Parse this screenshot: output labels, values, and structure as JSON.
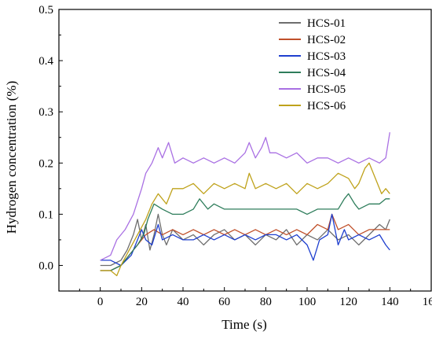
{
  "chart_data": {
    "type": "line",
    "title": "",
    "xlabel": "Time (s)",
    "ylabel": "Hydrogen concentration (%)",
    "xlim": [
      -20,
      160
    ],
    "ylim": [
      -0.05,
      0.5
    ],
    "xticks": [
      0,
      20,
      40,
      60,
      80,
      100,
      120,
      140,
      160
    ],
    "yticks": [
      0.0,
      0.1,
      0.2,
      0.3,
      0.4,
      0.5
    ],
    "xtick_labels": [
      "0",
      "20",
      "40",
      "60",
      "80",
      "100",
      "120",
      "140",
      "160"
    ],
    "ytick_labels": [
      "0.0",
      "0.1",
      "0.2",
      "0.3",
      "0.4",
      "0.5"
    ],
    "grid": false,
    "legend_position": "top-right",
    "series": [
      {
        "name": "HCS-01",
        "color": "#6e6e6e",
        "points": [
          [
            0,
            0.0
          ],
          [
            5,
            0.0
          ],
          [
            10,
            0.01
          ],
          [
            13,
            0.03
          ],
          [
            16,
            0.06
          ],
          [
            18,
            0.09
          ],
          [
            20,
            0.05
          ],
          [
            22,
            0.08
          ],
          [
            24,
            0.03
          ],
          [
            26,
            0.06
          ],
          [
            28,
            0.1
          ],
          [
            30,
            0.06
          ],
          [
            32,
            0.04
          ],
          [
            35,
            0.07
          ],
          [
            40,
            0.05
          ],
          [
            45,
            0.06
          ],
          [
            50,
            0.04
          ],
          [
            55,
            0.06
          ],
          [
            60,
            0.07
          ],
          [
            65,
            0.05
          ],
          [
            70,
            0.06
          ],
          [
            75,
            0.04
          ],
          [
            80,
            0.06
          ],
          [
            85,
            0.05
          ],
          [
            90,
            0.07
          ],
          [
            95,
            0.04
          ],
          [
            100,
            0.06
          ],
          [
            105,
            0.05
          ],
          [
            110,
            0.07
          ],
          [
            115,
            0.05
          ],
          [
            120,
            0.06
          ],
          [
            125,
            0.04
          ],
          [
            130,
            0.06
          ],
          [
            135,
            0.08
          ],
          [
            138,
            0.07
          ],
          [
            140,
            0.09
          ]
        ]
      },
      {
        "name": "HCS-02",
        "color": "#c0502a",
        "points": [
          [
            0,
            -0.01
          ],
          [
            5,
            -0.01
          ],
          [
            10,
            0.0
          ],
          [
            14,
            0.02
          ],
          [
            18,
            0.04
          ],
          [
            22,
            0.06
          ],
          [
            26,
            0.07
          ],
          [
            30,
            0.06
          ],
          [
            35,
            0.07
          ],
          [
            40,
            0.06
          ],
          [
            45,
            0.07
          ],
          [
            50,
            0.06
          ],
          [
            55,
            0.07
          ],
          [
            60,
            0.06
          ],
          [
            65,
            0.07
          ],
          [
            70,
            0.06
          ],
          [
            75,
            0.07
          ],
          [
            80,
            0.06
          ],
          [
            85,
            0.07
          ],
          [
            90,
            0.06
          ],
          [
            95,
            0.07
          ],
          [
            100,
            0.06
          ],
          [
            105,
            0.08
          ],
          [
            110,
            0.07
          ],
          [
            112,
            0.1
          ],
          [
            115,
            0.07
          ],
          [
            120,
            0.08
          ],
          [
            125,
            0.06
          ],
          [
            130,
            0.07
          ],
          [
            135,
            0.07
          ],
          [
            140,
            0.07
          ]
        ]
      },
      {
        "name": "HCS-03",
        "color": "#1f3fcf",
        "points": [
          [
            0,
            0.01
          ],
          [
            5,
            0.01
          ],
          [
            10,
            0.0
          ],
          [
            15,
            0.02
          ],
          [
            18,
            0.05
          ],
          [
            20,
            0.07
          ],
          [
            22,
            0.05
          ],
          [
            25,
            0.04
          ],
          [
            28,
            0.08
          ],
          [
            30,
            0.05
          ],
          [
            35,
            0.06
          ],
          [
            40,
            0.05
          ],
          [
            45,
            0.05
          ],
          [
            50,
            0.06
          ],
          [
            55,
            0.05
          ],
          [
            60,
            0.06
          ],
          [
            65,
            0.05
          ],
          [
            70,
            0.06
          ],
          [
            75,
            0.05
          ],
          [
            80,
            0.06
          ],
          [
            85,
            0.06
          ],
          [
            90,
            0.05
          ],
          [
            95,
            0.06
          ],
          [
            100,
            0.04
          ],
          [
            103,
            0.01
          ],
          [
            106,
            0.05
          ],
          [
            110,
            0.06
          ],
          [
            112,
            0.1
          ],
          [
            115,
            0.04
          ],
          [
            118,
            0.07
          ],
          [
            120,
            0.05
          ],
          [
            125,
            0.06
          ],
          [
            130,
            0.05
          ],
          [
            135,
            0.06
          ],
          [
            138,
            0.04
          ],
          [
            140,
            0.03
          ]
        ]
      },
      {
        "name": "HCS-04",
        "color": "#2e7d5b",
        "points": [
          [
            0,
            -0.01
          ],
          [
            5,
            -0.01
          ],
          [
            10,
            0.0
          ],
          [
            14,
            0.02
          ],
          [
            18,
            0.04
          ],
          [
            21,
            0.06
          ],
          [
            23,
            0.09
          ],
          [
            26,
            0.12
          ],
          [
            30,
            0.11
          ],
          [
            35,
            0.1
          ],
          [
            40,
            0.1
          ],
          [
            45,
            0.11
          ],
          [
            48,
            0.13
          ],
          [
            52,
            0.11
          ],
          [
            55,
            0.12
          ],
          [
            60,
            0.11
          ],
          [
            65,
            0.11
          ],
          [
            70,
            0.11
          ],
          [
            75,
            0.11
          ],
          [
            80,
            0.11
          ],
          [
            85,
            0.11
          ],
          [
            90,
            0.11
          ],
          [
            95,
            0.11
          ],
          [
            100,
            0.1
          ],
          [
            105,
            0.11
          ],
          [
            110,
            0.11
          ],
          [
            115,
            0.11
          ],
          [
            118,
            0.13
          ],
          [
            120,
            0.14
          ],
          [
            123,
            0.12
          ],
          [
            125,
            0.11
          ],
          [
            130,
            0.12
          ],
          [
            135,
            0.12
          ],
          [
            138,
            0.13
          ],
          [
            140,
            0.13
          ]
        ]
      },
      {
        "name": "HCS-05",
        "color": "#a970e3",
        "points": [
          [
            0,
            0.01
          ],
          [
            5,
            0.02
          ],
          [
            8,
            0.05
          ],
          [
            12,
            0.07
          ],
          [
            16,
            0.1
          ],
          [
            20,
            0.15
          ],
          [
            22,
            0.18
          ],
          [
            25,
            0.2
          ],
          [
            28,
            0.23
          ],
          [
            30,
            0.21
          ],
          [
            33,
            0.24
          ],
          [
            36,
            0.2
          ],
          [
            40,
            0.21
          ],
          [
            45,
            0.2
          ],
          [
            50,
            0.21
          ],
          [
            55,
            0.2
          ],
          [
            60,
            0.21
          ],
          [
            65,
            0.2
          ],
          [
            70,
            0.22
          ],
          [
            72,
            0.24
          ],
          [
            75,
            0.21
          ],
          [
            78,
            0.23
          ],
          [
            80,
            0.25
          ],
          [
            82,
            0.22
          ],
          [
            85,
            0.22
          ],
          [
            90,
            0.21
          ],
          [
            95,
            0.22
          ],
          [
            100,
            0.2
          ],
          [
            105,
            0.21
          ],
          [
            110,
            0.21
          ],
          [
            115,
            0.2
          ],
          [
            120,
            0.21
          ],
          [
            125,
            0.2
          ],
          [
            130,
            0.21
          ],
          [
            135,
            0.2
          ],
          [
            138,
            0.21
          ],
          [
            140,
            0.26
          ]
        ]
      },
      {
        "name": "HCS-06",
        "color": "#bfa21b",
        "points": [
          [
            0,
            -0.01
          ],
          [
            5,
            -0.01
          ],
          [
            8,
            -0.02
          ],
          [
            10,
            0.0
          ],
          [
            14,
            0.03
          ],
          [
            18,
            0.06
          ],
          [
            22,
            0.09
          ],
          [
            25,
            0.12
          ],
          [
            28,
            0.14
          ],
          [
            32,
            0.12
          ],
          [
            35,
            0.15
          ],
          [
            40,
            0.15
          ],
          [
            45,
            0.16
          ],
          [
            50,
            0.14
          ],
          [
            55,
            0.16
          ],
          [
            60,
            0.15
          ],
          [
            65,
            0.16
          ],
          [
            70,
            0.15
          ],
          [
            72,
            0.18
          ],
          [
            75,
            0.15
          ],
          [
            80,
            0.16
          ],
          [
            85,
            0.15
          ],
          [
            90,
            0.16
          ],
          [
            95,
            0.14
          ],
          [
            100,
            0.16
          ],
          [
            105,
            0.15
          ],
          [
            110,
            0.16
          ],
          [
            115,
            0.18
          ],
          [
            120,
            0.17
          ],
          [
            123,
            0.15
          ],
          [
            125,
            0.16
          ],
          [
            128,
            0.19
          ],
          [
            130,
            0.2
          ],
          [
            133,
            0.17
          ],
          [
            136,
            0.14
          ],
          [
            138,
            0.15
          ],
          [
            140,
            0.14
          ]
        ]
      }
    ]
  }
}
